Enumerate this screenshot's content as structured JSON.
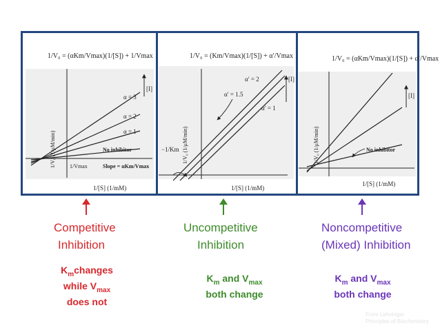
{
  "colors": {
    "frame": "#23467e",
    "competitive": "#d6292d",
    "uncompetitive": "#3d8b2a",
    "noncompetitive": "#6a35b8",
    "plot_bg": "#efefef"
  },
  "panels": [
    {
      "id": "competitive",
      "equation": "1/V₀ = (αKm/Vmax)(1/[S]) + 1/Vmax",
      "y_axis": "1/V₀ (1/μM/min)",
      "x_axis": "1/[S] (1/mM)",
      "inhibitor": "[I]",
      "line_labels": [
        "α = 3",
        "α = 2",
        "α = 1",
        "No inhibitor"
      ],
      "intercept_label": "1/Vmax",
      "slope_label": "Slope = αKm/Vmax"
    },
    {
      "id": "uncompetitive",
      "equation": "1/V₀ = (Km/Vmax)(1/[S]) + α′/Vmax",
      "y_axis": "1/V₀ (1/μM/min)",
      "x_axis": "1/[S] (1/mM)",
      "inhibitor": "[I]",
      "line_labels": [
        "α′ = 2",
        "α′ = 1.5",
        "α′ = 1"
      ],
      "intercept_label": "−1/Km"
    },
    {
      "id": "noncompetitive",
      "equation": "1/V₀ = (αKm/Vmax)(1/[S]) + α′/Vmax",
      "y_axis": "1/V₀ (1/μM/min)",
      "x_axis": "1/[S] (1/mM)",
      "inhibitor": "[I]",
      "line_labels": [
        "No inhibitor"
      ]
    }
  ],
  "captions": {
    "competitive": {
      "line1": "Competitive",
      "line2": "Inhibition",
      "note_km": "K",
      "note_km_sub": "m",
      "note_km_rest": "changes",
      "note_vmax": "while V",
      "note_vmax_sub": "max",
      "note_end": "does not"
    },
    "uncompetitive": {
      "line1": "Uncompetitive",
      "line2": "Inhibition",
      "note_k": "K",
      "note_k_sub": "m",
      "note_and": " and V",
      "note_v_sub": "max",
      "note_end": "both change"
    },
    "noncompetitive": {
      "line1": "Noncompetitive",
      "line2": "(Mixed) Inhibition",
      "note_k": "K",
      "note_k_sub": "m",
      "note_and": " and V",
      "note_v_sub": "max",
      "note_end": "both change"
    }
  },
  "credit": {
    "line1": "From Lehninger",
    "line2": "Principles of Biochemistry"
  }
}
